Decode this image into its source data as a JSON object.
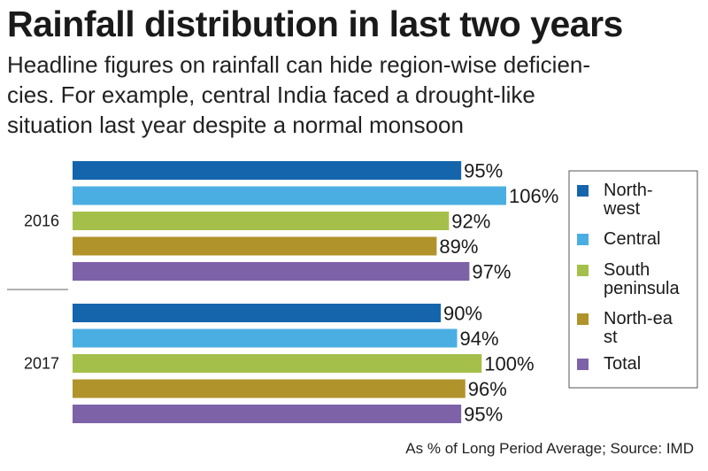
{
  "header": {
    "title": "Rainfall distribution in last two years",
    "subtitle_lines": [
      "Headline figures on rainfall can hide region-wise deficien-",
      "cies. For example, central India faced a drought-like",
      "situation last year despite a normal monsoon"
    ]
  },
  "source": "As % of Long Period Average; Source: IMD",
  "chart_data": {
    "type": "bar",
    "orientation": "horizontal",
    "title": "Rainfall distribution in last two years",
    "categories": [
      "2016",
      "2017"
    ],
    "series": [
      {
        "name": "North-west",
        "legend_lines": [
          "North-",
          "west"
        ],
        "color": "#1565ad",
        "values": [
          95,
          90
        ],
        "labels": [
          "95%",
          "90%"
        ]
      },
      {
        "name": "Central",
        "legend_lines": [
          "Central"
        ],
        "color": "#4aaee2",
        "values": [
          106,
          94
        ],
        "labels": [
          "106%",
          "94%"
        ]
      },
      {
        "name": "South peninsula",
        "legend_lines": [
          "South",
          "peninsula"
        ],
        "color": "#a4c04a",
        "values": [
          92,
          100
        ],
        "labels": [
          "92%",
          "100%"
        ]
      },
      {
        "name": "North-east",
        "legend_lines": [
          "North-ea",
          "st"
        ],
        "color": "#b0932a",
        "values": [
          89,
          96
        ],
        "labels": [
          "89%",
          "96%"
        ]
      },
      {
        "name": "Total",
        "legend_lines": [
          "Total"
        ],
        "color": "#7e62a8",
        "values": [
          97,
          95
        ],
        "labels": [
          "97%",
          "95%"
        ]
      }
    ],
    "unit": "% of Long Period Average",
    "xlim": [
      0,
      106
    ],
    "legend_position": "right",
    "grid": false
  }
}
